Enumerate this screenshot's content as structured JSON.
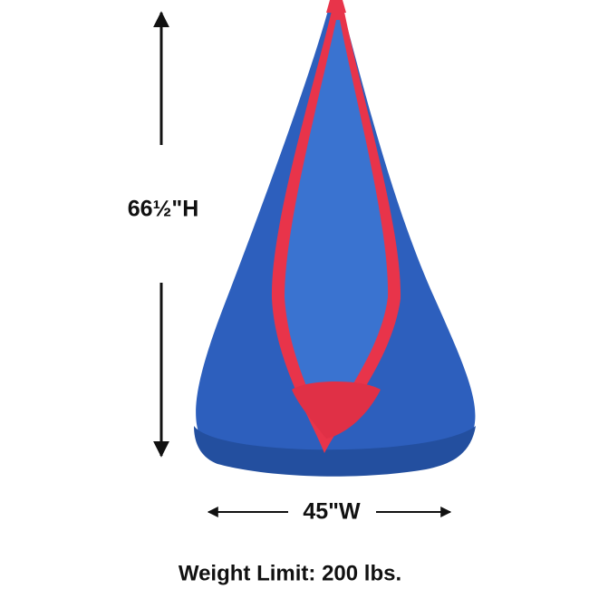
{
  "height_label": "66½\"H",
  "width_label": "45\"W",
  "weight_label": "Weight Limit: 200 lbs."
}
